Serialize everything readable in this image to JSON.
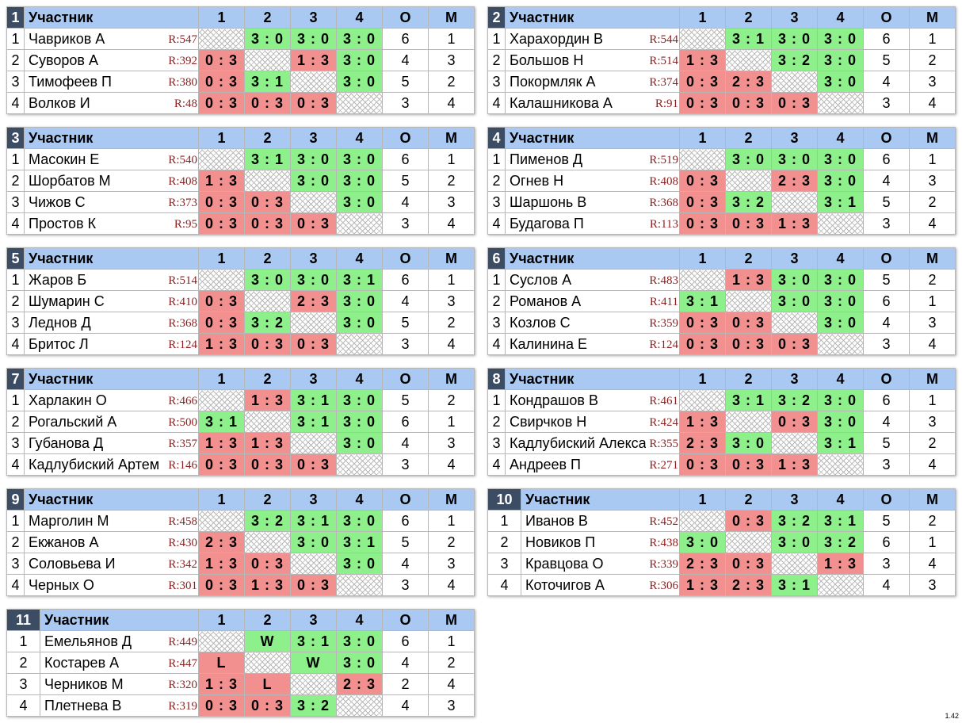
{
  "headers": {
    "participant": "Участник",
    "cols": [
      "1",
      "2",
      "3",
      "4"
    ],
    "o": "О",
    "m": "М"
  },
  "groups": [
    {
      "num": "1",
      "rows": [
        {
          "i": "1",
          "name": "Чавриков А",
          "r": "R:547",
          "res": [
            "",
            "3 : 0",
            "3 : 0",
            "3 : 0"
          ],
          "o": "6",
          "m": "1"
        },
        {
          "i": "2",
          "name": "Суворов А",
          "r": "R:392",
          "res": [
            "0 : 3",
            "",
            "1 : 3",
            "3 : 0"
          ],
          "o": "4",
          "m": "3"
        },
        {
          "i": "3",
          "name": "Тимофеев П",
          "r": "R:380",
          "res": [
            "0 : 3",
            "3 : 1",
            "",
            "3 : 0"
          ],
          "o": "5",
          "m": "2"
        },
        {
          "i": "4",
          "name": "Волков И",
          "r": "R:48",
          "res": [
            "0 : 3",
            "0 : 3",
            "0 : 3",
            ""
          ],
          "o": "3",
          "m": "4"
        }
      ]
    },
    {
      "num": "2",
      "rows": [
        {
          "i": "1",
          "name": "Харахордин В",
          "r": "R:544",
          "res": [
            "",
            "3 : 1",
            "3 : 0",
            "3 : 0"
          ],
          "o": "6",
          "m": "1"
        },
        {
          "i": "2",
          "name": "Большов Н",
          "r": "R:514",
          "res": [
            "1 : 3",
            "",
            "3 : 2",
            "3 : 0"
          ],
          "o": "5",
          "m": "2"
        },
        {
          "i": "3",
          "name": "Покормляк А",
          "r": "R:374",
          "res": [
            "0 : 3",
            "2 : 3",
            "",
            "3 : 0"
          ],
          "o": "4",
          "m": "3"
        },
        {
          "i": "4",
          "name": "Калашникова А",
          "r": "R:91",
          "res": [
            "0 : 3",
            "0 : 3",
            "0 : 3",
            ""
          ],
          "o": "3",
          "m": "4"
        }
      ]
    },
    {
      "num": "3",
      "rows": [
        {
          "i": "1",
          "name": "Масокин Е",
          "r": "R:540",
          "res": [
            "",
            "3 : 1",
            "3 : 0",
            "3 : 0"
          ],
          "o": "6",
          "m": "1"
        },
        {
          "i": "2",
          "name": "Шорбатов М",
          "r": "R:408",
          "res": [
            "1 : 3",
            "",
            "3 : 0",
            "3 : 0"
          ],
          "o": "5",
          "m": "2"
        },
        {
          "i": "3",
          "name": "Чижов С",
          "r": "R:373",
          "res": [
            "0 : 3",
            "0 : 3",
            "",
            "3 : 0"
          ],
          "o": "4",
          "m": "3"
        },
        {
          "i": "4",
          "name": "Простов К",
          "r": "R:95",
          "res": [
            "0 : 3",
            "0 : 3",
            "0 : 3",
            ""
          ],
          "o": "3",
          "m": "4"
        }
      ]
    },
    {
      "num": "4",
      "rows": [
        {
          "i": "1",
          "name": "Пименов Д",
          "r": "R:519",
          "res": [
            "",
            "3 : 0",
            "3 : 0",
            "3 : 0"
          ],
          "o": "6",
          "m": "1"
        },
        {
          "i": "2",
          "name": "Огнев Н",
          "r": "R:408",
          "res": [
            "0 : 3",
            "",
            "2 : 3",
            "3 : 0"
          ],
          "o": "4",
          "m": "3"
        },
        {
          "i": "3",
          "name": "Шаршонь В",
          "r": "R:368",
          "res": [
            "0 : 3",
            "3 : 2",
            "",
            "3 : 1"
          ],
          "o": "5",
          "m": "2"
        },
        {
          "i": "4",
          "name": "Будагова П",
          "r": "R:113",
          "res": [
            "0 : 3",
            "0 : 3",
            "1 : 3",
            ""
          ],
          "o": "3",
          "m": "4"
        }
      ]
    },
    {
      "num": "5",
      "rows": [
        {
          "i": "1",
          "name": "Жаров Б",
          "r": "R:514",
          "res": [
            "",
            "3 : 0",
            "3 : 0",
            "3 : 1"
          ],
          "o": "6",
          "m": "1"
        },
        {
          "i": "2",
          "name": "Шумарин С",
          "r": "R:410",
          "res": [
            "0 : 3",
            "",
            "2 : 3",
            "3 : 0"
          ],
          "o": "4",
          "m": "3"
        },
        {
          "i": "3",
          "name": "Леднов Д",
          "r": "R:368",
          "res": [
            "0 : 3",
            "3 : 2",
            "",
            "3 : 0"
          ],
          "o": "5",
          "m": "2"
        },
        {
          "i": "4",
          "name": "Бритос Л",
          "r": "R:124",
          "res": [
            "1 : 3",
            "0 : 3",
            "0 : 3",
            ""
          ],
          "o": "3",
          "m": "4"
        }
      ]
    },
    {
      "num": "6",
      "rows": [
        {
          "i": "1",
          "name": "Суслов А",
          "r": "R:483",
          "res": [
            "",
            "1 : 3",
            "3 : 0",
            "3 : 0"
          ],
          "o": "5",
          "m": "2"
        },
        {
          "i": "2",
          "name": "Романов А",
          "r": "R:411",
          "res": [
            "3 : 1",
            "",
            "3 : 0",
            "3 : 0"
          ],
          "o": "6",
          "m": "1"
        },
        {
          "i": "3",
          "name": "Козлов С",
          "r": "R:359",
          "res": [
            "0 : 3",
            "0 : 3",
            "",
            "3 : 0"
          ],
          "o": "4",
          "m": "3"
        },
        {
          "i": "4",
          "name": "Калинина Е",
          "r": "R:124",
          "res": [
            "0 : 3",
            "0 : 3",
            "0 : 3",
            ""
          ],
          "o": "3",
          "m": "4"
        }
      ]
    },
    {
      "num": "7",
      "rows": [
        {
          "i": "1",
          "name": "Харлакин О",
          "r": "R:466",
          "res": [
            "",
            "1 : 3",
            "3 : 1",
            "3 : 0"
          ],
          "o": "5",
          "m": "2"
        },
        {
          "i": "2",
          "name": "Рогальский А",
          "r": "R:500",
          "res": [
            "3 : 1",
            "",
            "3 : 1",
            "3 : 0"
          ],
          "o": "6",
          "m": "1"
        },
        {
          "i": "3",
          "name": "Губанова Д",
          "r": "R:357",
          "res": [
            "1 : 3",
            "1 : 3",
            "",
            "3 : 0"
          ],
          "o": "4",
          "m": "3"
        },
        {
          "i": "4",
          "name": "Кадлубиский Артем",
          "r": "R:146",
          "res": [
            "0 : 3",
            "0 : 3",
            "0 : 3",
            ""
          ],
          "o": "3",
          "m": "4"
        }
      ]
    },
    {
      "num": "8",
      "rows": [
        {
          "i": "1",
          "name": "Кондрашов В",
          "r": "R:461",
          "res": [
            "",
            "3 : 1",
            "3 : 2",
            "3 : 0"
          ],
          "o": "6",
          "m": "1"
        },
        {
          "i": "2",
          "name": "Свирчков Н",
          "r": "R:424",
          "res": [
            "1 : 3",
            "",
            "0 : 3",
            "3 : 0"
          ],
          "o": "4",
          "m": "3"
        },
        {
          "i": "3",
          "name": "Кадлубиский Александр",
          "r": "R:355",
          "res": [
            "2 : 3",
            "3 : 0",
            "",
            "3 : 1"
          ],
          "o": "5",
          "m": "2"
        },
        {
          "i": "4",
          "name": "Андреев П",
          "r": "R:271",
          "res": [
            "0 : 3",
            "0 : 3",
            "1 : 3",
            ""
          ],
          "o": "3",
          "m": "4"
        }
      ]
    },
    {
      "num": "9",
      "rows": [
        {
          "i": "1",
          "name": "Марголин М",
          "r": "R:458",
          "res": [
            "",
            "3 : 2",
            "3 : 1",
            "3 : 0"
          ],
          "o": "6",
          "m": "1"
        },
        {
          "i": "2",
          "name": "Екжанов А",
          "r": "R:430",
          "res": [
            "2 : 3",
            "",
            "3 : 0",
            "3 : 1"
          ],
          "o": "5",
          "m": "2"
        },
        {
          "i": "3",
          "name": "Соловьева И",
          "r": "R:342",
          "res": [
            "1 : 3",
            "0 : 3",
            "",
            "3 : 0"
          ],
          "o": "4",
          "m": "3"
        },
        {
          "i": "4",
          "name": "Черных О",
          "r": "R:301",
          "res": [
            "0 : 3",
            "1 : 3",
            "0 : 3",
            ""
          ],
          "o": "3",
          "m": "4"
        }
      ]
    },
    {
      "num": "10",
      "rows": [
        {
          "i": "1",
          "name": "Иванов В",
          "r": "R:452",
          "res": [
            "",
            "0 : 3",
            "3 : 2",
            "3 : 1"
          ],
          "o": "5",
          "m": "2"
        },
        {
          "i": "2",
          "name": "Новиков П",
          "r": "R:438",
          "res": [
            "3 : 0",
            "",
            "3 : 0",
            "3 : 2"
          ],
          "o": "6",
          "m": "1"
        },
        {
          "i": "3",
          "name": "Кравцова О",
          "r": "R:339",
          "res": [
            "2 : 3",
            "0 : 3",
            "",
            "1 : 3"
          ],
          "o": "3",
          "m": "4"
        },
        {
          "i": "4",
          "name": "Коточигов А",
          "r": "R:306",
          "res": [
            "1 : 3",
            "2 : 3",
            "3 : 1",
            ""
          ],
          "o": "4",
          "m": "3"
        }
      ]
    },
    {
      "num": "11",
      "rows": [
        {
          "i": "1",
          "name": "Емельянов Д",
          "r": "R:449",
          "res": [
            "",
            "W",
            "3 : 1",
            "3 : 0"
          ],
          "o": "6",
          "m": "1"
        },
        {
          "i": "2",
          "name": "Костарев А",
          "r": "R:447",
          "res": [
            "L",
            "",
            "W",
            "3 : 0"
          ],
          "o": "4",
          "m": "2"
        },
        {
          "i": "3",
          "name": "Черников М",
          "r": "R:320",
          "res": [
            "1 : 3",
            "L",
            "",
            "2 : 3"
          ],
          "o": "2",
          "m": "4"
        },
        {
          "i": "4",
          "name": "Плетнева В",
          "r": "R:319",
          "res": [
            "0 : 3",
            "0 : 3",
            "3 : 2",
            ""
          ],
          "o": "4",
          "m": "3"
        }
      ]
    }
  ],
  "version": "1.42"
}
